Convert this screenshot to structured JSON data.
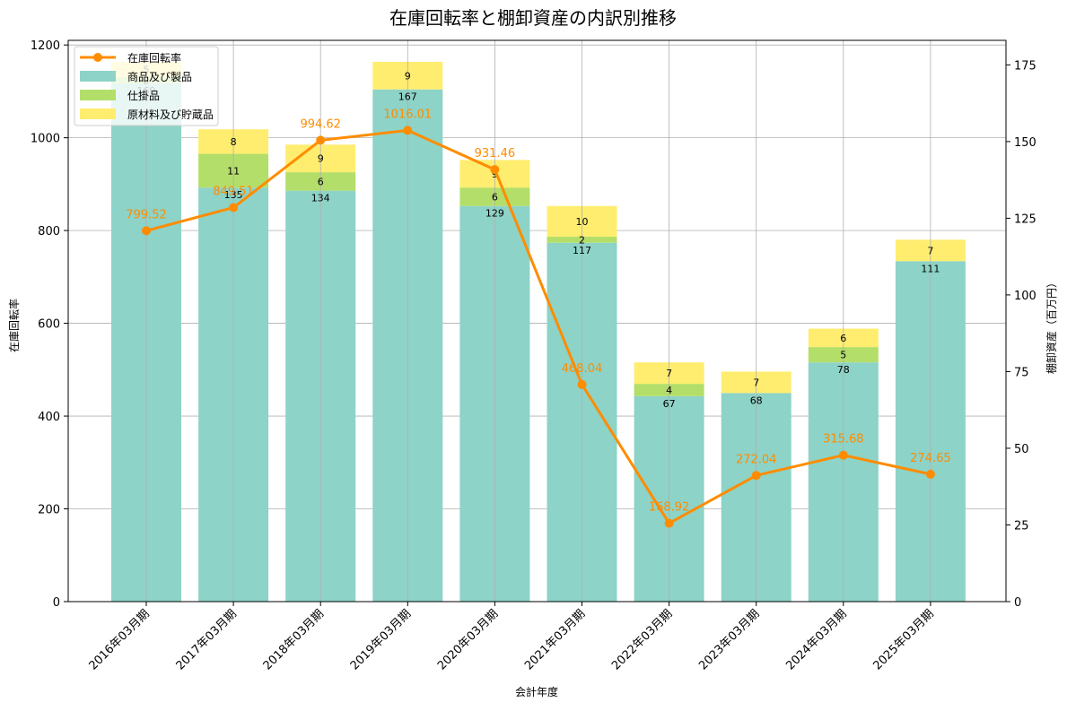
{
  "chart_data": {
    "type": "bar",
    "title": "在庫回転率と棚卸資産の内訳別推移",
    "xlabel": "会計年度",
    "ylabel": "在庫回転率",
    "ylabel_right": "棚卸資産（百万円）",
    "ylim": [
      0,
      1210
    ],
    "ylim_right": [
      0,
      183
    ],
    "yticks": [
      0,
      200,
      400,
      600,
      800,
      1000,
      1200
    ],
    "yticks_right": [
      0,
      25,
      50,
      75,
      100,
      125,
      150,
      175
    ],
    "grid": true,
    "legend_position": "upper left",
    "categories": [
      "2016年03月期",
      "2017年03月期",
      "2018年03月期",
      "2019年03月期",
      "2020年03月期",
      "2021年03月期",
      "2022年03月期",
      "2023年03月期",
      "2024年03月期",
      "2025年03月期"
    ],
    "series": [
      {
        "name": "商品及び製品",
        "type": "bar",
        "axis": "right",
        "color": "#8dd3c7",
        "values": [
          169,
          135,
          134,
          167,
          129,
          117,
          67,
          68,
          78,
          111
        ]
      },
      {
        "name": "仕掛品",
        "type": "bar",
        "axis": "right",
        "color": "#b3de69",
        "values": [
          2,
          11,
          6,
          0,
          6,
          2,
          4,
          0,
          5,
          0
        ]
      },
      {
        "name": "原材料及び貯蔵品",
        "type": "bar",
        "axis": "right",
        "color": "#ffed6f",
        "values": [
          5,
          8,
          9,
          9,
          9,
          10,
          7,
          7,
          6,
          7
        ]
      },
      {
        "name": "在庫回転率",
        "type": "line",
        "axis": "left",
        "color": "#ff8c00",
        "values": [
          799.52,
          849.51,
          994.62,
          1016.01,
          931.46,
          468.04,
          168.92,
          272.04,
          315.68,
          274.65
        ]
      }
    ],
    "legend": [
      "在庫回転率",
      "商品及び製品",
      "仕掛品",
      "原材料及び貯蔵品"
    ]
  }
}
